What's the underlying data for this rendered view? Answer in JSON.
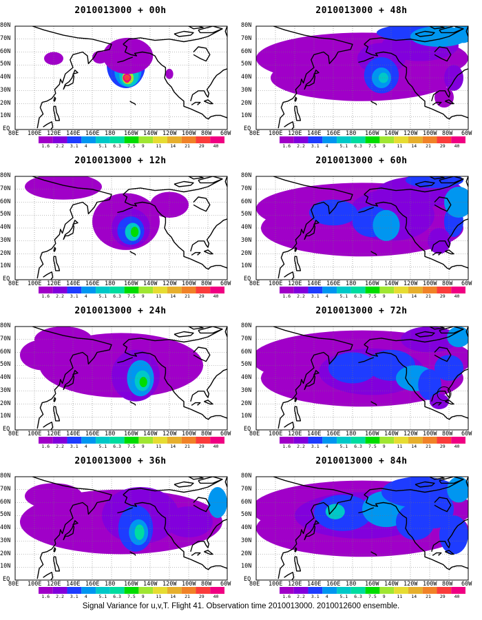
{
  "panels": [
    {
      "title": "2010013000 + 00h"
    },
    {
      "title": "2010013000 + 48h"
    },
    {
      "title": "2010013000 + 12h"
    },
    {
      "title": "2010013000 + 60h"
    },
    {
      "title": "2010013000 + 24h"
    },
    {
      "title": "2010013000 + 72h"
    },
    {
      "title": "2010013000 + 36h"
    },
    {
      "title": "2010013000 + 84h"
    }
  ],
  "lat_labels": [
    "80N",
    "70N",
    "60N",
    "50N",
    "40N",
    "30N",
    "20N",
    "10N",
    "EQ"
  ],
  "lon_labels": [
    "80E",
    "100E",
    "120E",
    "140E",
    "160E",
    "180",
    "160W",
    "140W",
    "120W",
    "100W",
    "80W",
    "60W"
  ],
  "colorbar": {
    "levels": [
      "1.6",
      "2.2",
      "3.1",
      "4",
      "5.1",
      "6.3",
      "7.5",
      "9",
      "11",
      "14",
      "21",
      "29",
      "40"
    ],
    "colors": [
      "#a000c8",
      "#8200dc",
      "#1e3cff",
      "#0096f0",
      "#00c8c8",
      "#00dca0",
      "#00dc00",
      "#a0e632",
      "#e6dc32",
      "#e6af2d",
      "#f08228",
      "#fa3c3c",
      "#f00082"
    ]
  },
  "footer": "Signal Variance for u,v,T. Flight 41. Observation time 2010013000. 2010012600 ensemble."
}
